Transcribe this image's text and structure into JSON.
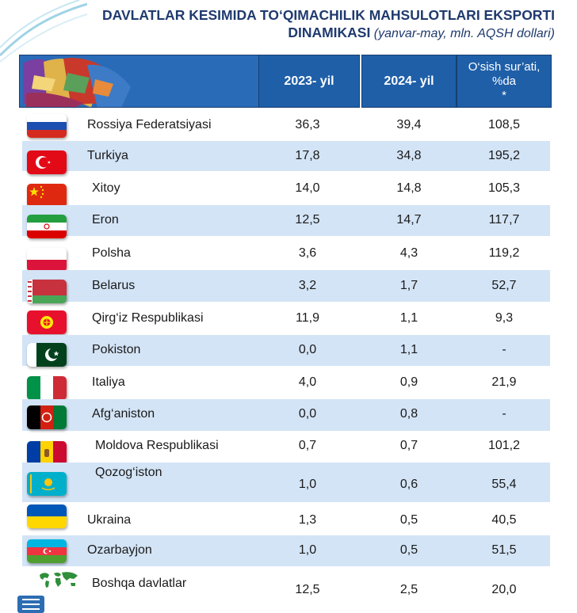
{
  "title": {
    "line1": "DAVLATLAR KESIMIDA TO‘QIMACHILIK MAHSULOTLARI EKSPORTI",
    "line2_bold": "DINAMIKASI",
    "line2_sub": " (yanvar-may, mln. AQSH dollari)"
  },
  "header": {
    "col1": "2023- yil",
    "col2": "2024- yil",
    "col3_line1": "O‘sish sur’ati,",
    "col3_line2": "%da",
    "col3_line3": "*"
  },
  "rows": [
    {
      "country": "Rossiya Federatsiyasi",
      "y2023": "36,3",
      "y2024": "39,4",
      "growth": "108,5",
      "flag": "russia-flag-icon"
    },
    {
      "country": "Turkiya",
      "y2023": "17,8",
      "y2024": "34,8",
      "growth": "195,2",
      "flag": "turkey-flag-icon"
    },
    {
      "country": "Xitoy",
      "y2023": "14,0",
      "y2024": "14,8",
      "growth": "105,3",
      "flag": "china-flag-icon"
    },
    {
      "country": "Eron",
      "y2023": "12,5",
      "y2024": "14,7",
      "growth": "117,7",
      "flag": "iran-flag-icon"
    },
    {
      "country": "Polsha",
      "y2023": "3,6",
      "y2024": "4,3",
      "growth": "119,2",
      "flag": "poland-flag-icon"
    },
    {
      "country": "Belarus",
      "y2023": "3,2",
      "y2024": "1,7",
      "growth": "52,7",
      "flag": "belarus-flag-icon"
    },
    {
      "country": "Qirg‘iz Respublikasi",
      "y2023": "11,9",
      "y2024": "1,1",
      "growth": "9,3",
      "flag": "kyrgyzstan-flag-icon"
    },
    {
      "country": "Pokiston",
      "y2023": "0,0",
      "y2024": "1,1",
      "growth": "-",
      "flag": "pakistan-flag-icon"
    },
    {
      "country": "Italiya",
      "y2023": "4,0",
      "y2024": "0,9",
      "growth": "21,9",
      "flag": "italy-flag-icon"
    },
    {
      "country": "Afg‘aniston",
      "y2023": "0,0",
      "y2024": "0,8",
      "growth": "-",
      "flag": "afghanistan-flag-icon"
    },
    {
      "country": "Moldova Respublikasi",
      "y2023": "0,7",
      "y2024": "0,7",
      "growth": "101,2",
      "flag": "moldova-flag-icon"
    },
    {
      "country": "Qozog‘iston",
      "y2023": "1,0",
      "y2024": "0,6",
      "growth": "55,4",
      "flag": "kazakhstan-flag-icon"
    },
    {
      "country": "Ukraina",
      "y2023": "1,3",
      "y2024": "0,5",
      "growth": "40,5",
      "flag": "ukraine-flag-icon"
    },
    {
      "country": "Ozarbayjon",
      "y2023": "1,0",
      "y2024": "0,5",
      "growth": "51,5",
      "flag": "azerbaijan-flag-icon"
    },
    {
      "country": "Boshqa davlatlar",
      "y2023": "12,5",
      "y2024": "2,5",
      "growth": "20,0",
      "flag": "world-map-icon"
    }
  ],
  "colors": {
    "header_bg": "#1f5fa8",
    "row_shade": "#d3e4f6",
    "title": "#1f3a6e"
  }
}
